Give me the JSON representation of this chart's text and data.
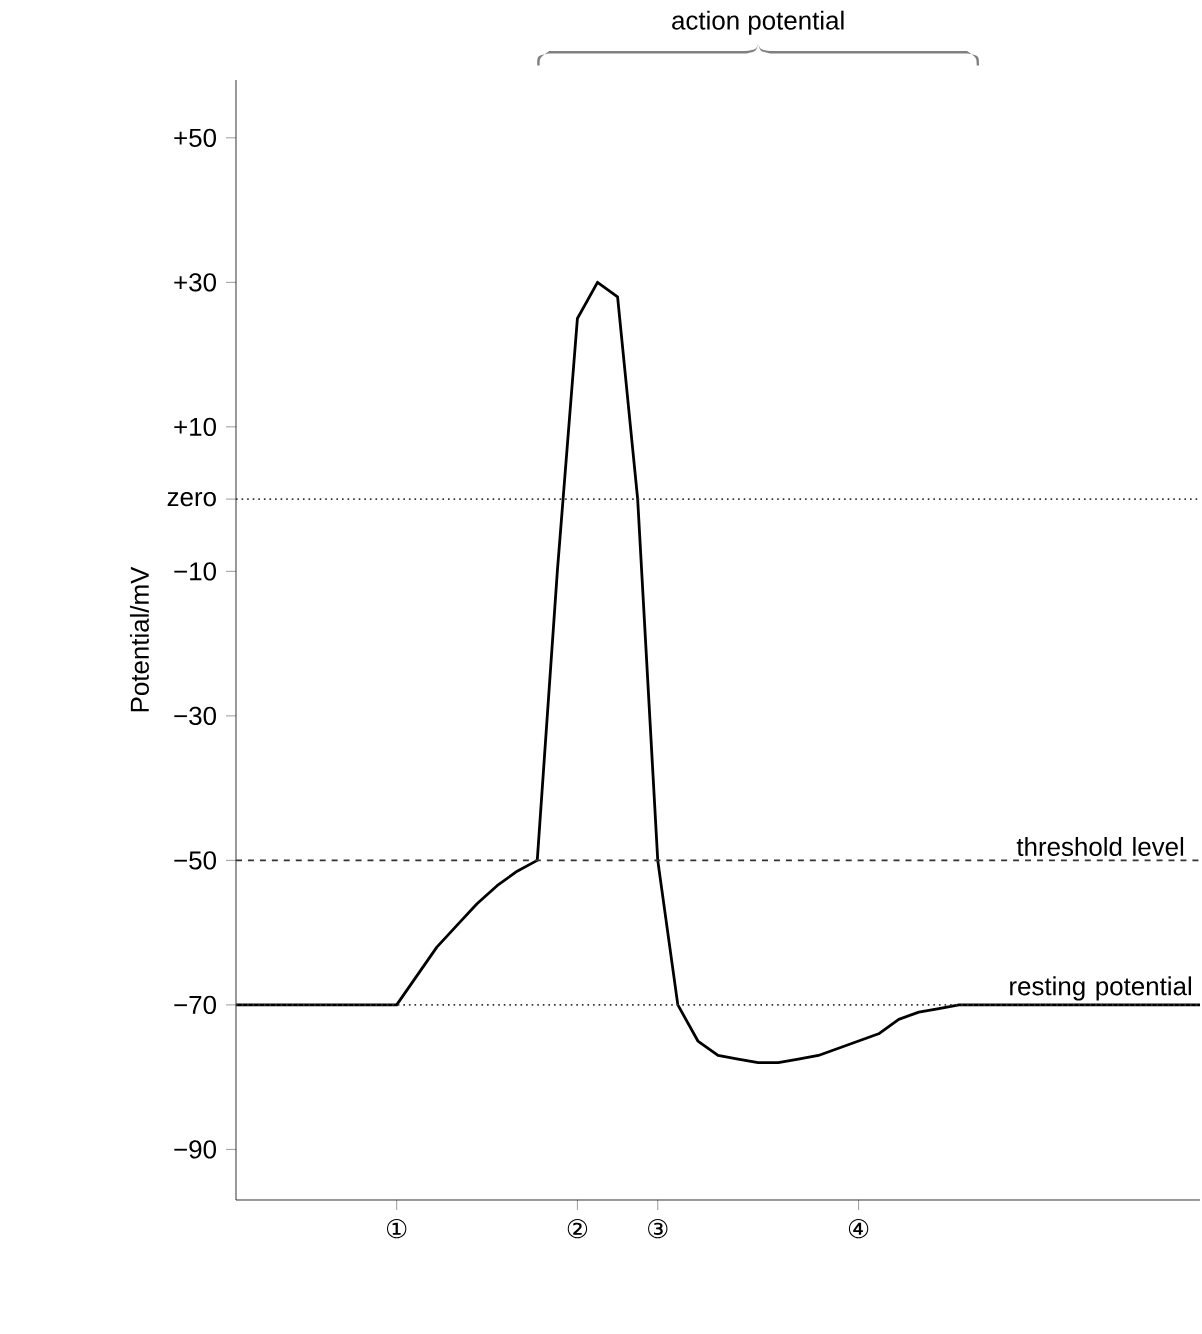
{
  "chart_data": {
    "type": "line",
    "ylabel": "Potential/mV",
    "marker": "none",
    "categories": [
      null,
      null,
      null,
      null,
      null,
      null,
      null,
      null,
      "①",
      null,
      null,
      null,
      null,
      null,
      null,
      null,
      null,
      "②",
      null,
      null,
      null,
      "③",
      null,
      null,
      null,
      null,
      null,
      null,
      null,
      null,
      null,
      "④",
      null,
      null,
      null,
      null,
      null,
      null,
      null,
      null,
      null,
      null,
      null,
      null,
      null,
      null,
      null,
      null,
      null
    ],
    "series": [
      {
        "color": "#000000",
        "values": [
          -70,
          -70,
          -70,
          -70,
          -70,
          -70,
          -70,
          -70,
          -70,
          -66,
          -62,
          -59,
          -56,
          -53.5,
          -51.5,
          -50,
          -10,
          25,
          30,
          28,
          0,
          -50,
          -70,
          -75,
          -77,
          -77.5,
          -78,
          -78,
          -77.5,
          -77,
          -76,
          -75,
          -74,
          -72,
          -71,
          -70.5,
          -70,
          -70,
          -70,
          -70,
          -70,
          -70,
          -70,
          -70,
          -70,
          -70,
          -70,
          -70,
          -70
        ]
      }
    ],
    "ylim": [
      -97,
      58
    ],
    "yticks": [
      {
        "value": 50,
        "label": "+50"
      },
      {
        "value": 30,
        "label": "+30"
      },
      {
        "value": 10,
        "label": "+10"
      },
      {
        "value": 0,
        "label": "zero"
      },
      {
        "value": -10,
        "label": "−10"
      },
      {
        "value": -30,
        "label": "−30"
      },
      {
        "value": -50,
        "label": "−50"
      },
      {
        "value": -70,
        "label": "−70"
      },
      {
        "value": -90,
        "label": "−90"
      }
    ],
    "ref_lines": [
      {
        "axis": "y",
        "value": 0,
        "line_style": "dotted",
        "color": "#333333"
      },
      {
        "axis": "y",
        "value": -50,
        "label": "threshold level",
        "line_style": "dashed",
        "color": "#333333"
      },
      {
        "axis": "y",
        "value": -70,
        "label": "resting potential",
        "line_style": "dotted",
        "color": "#333333"
      }
    ],
    "annotations": [
      "action potential"
    ]
  }
}
